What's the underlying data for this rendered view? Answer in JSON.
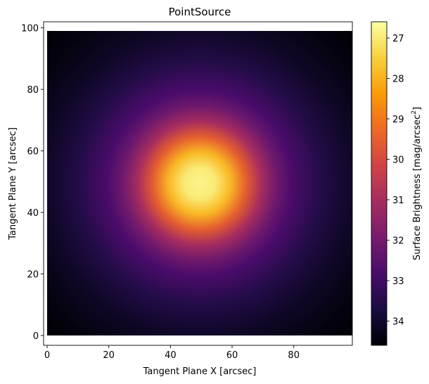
{
  "chart_data": {
    "type": "heatmap",
    "title": "PointSource",
    "xlabel": "Tangent Plane X [arcsec]",
    "ylabel": "Tangent Plane Y [arcsec]",
    "xlim": [
      0,
      99
    ],
    "ylim": [
      0,
      99
    ],
    "x_ticks": [
      "0",
      "20",
      "40",
      "60",
      "80"
    ],
    "y_ticks": [
      "0",
      "20",
      "40",
      "60",
      "80",
      "100"
    ],
    "center": [
      49.5,
      49.5
    ],
    "grid": false,
    "colormap": "inferno",
    "colorbar": {
      "label_text": "Surface Brightness [mag/arcsec",
      "label_sup": "2",
      "label_end": "]",
      "range": [
        26.6,
        34.6
      ],
      "inverted": true,
      "ticks": [
        "27",
        "28",
        "29",
        "30",
        "31",
        "32",
        "33",
        "34"
      ]
    },
    "profile": {
      "peak_value": 26.8,
      "value_at_radius": [
        [
          0,
          26.8
        ],
        [
          5,
          27.0
        ],
        [
          10,
          27.9
        ],
        [
          15,
          29.5
        ],
        [
          20,
          31.0
        ],
        [
          25,
          32.1
        ],
        [
          30,
          32.8
        ],
        [
          40,
          33.6
        ],
        [
          50,
          34.1
        ],
        [
          60,
          34.4
        ],
        [
          70,
          34.6
        ]
      ]
    }
  },
  "colors": {
    "inferno": [
      "#000004",
      "#1b0c41",
      "#4a0c6b",
      "#781c6d",
      "#a52c60",
      "#cf4446",
      "#ed6925",
      "#fb9b06",
      "#f7d13d",
      "#fcffa4"
    ]
  }
}
